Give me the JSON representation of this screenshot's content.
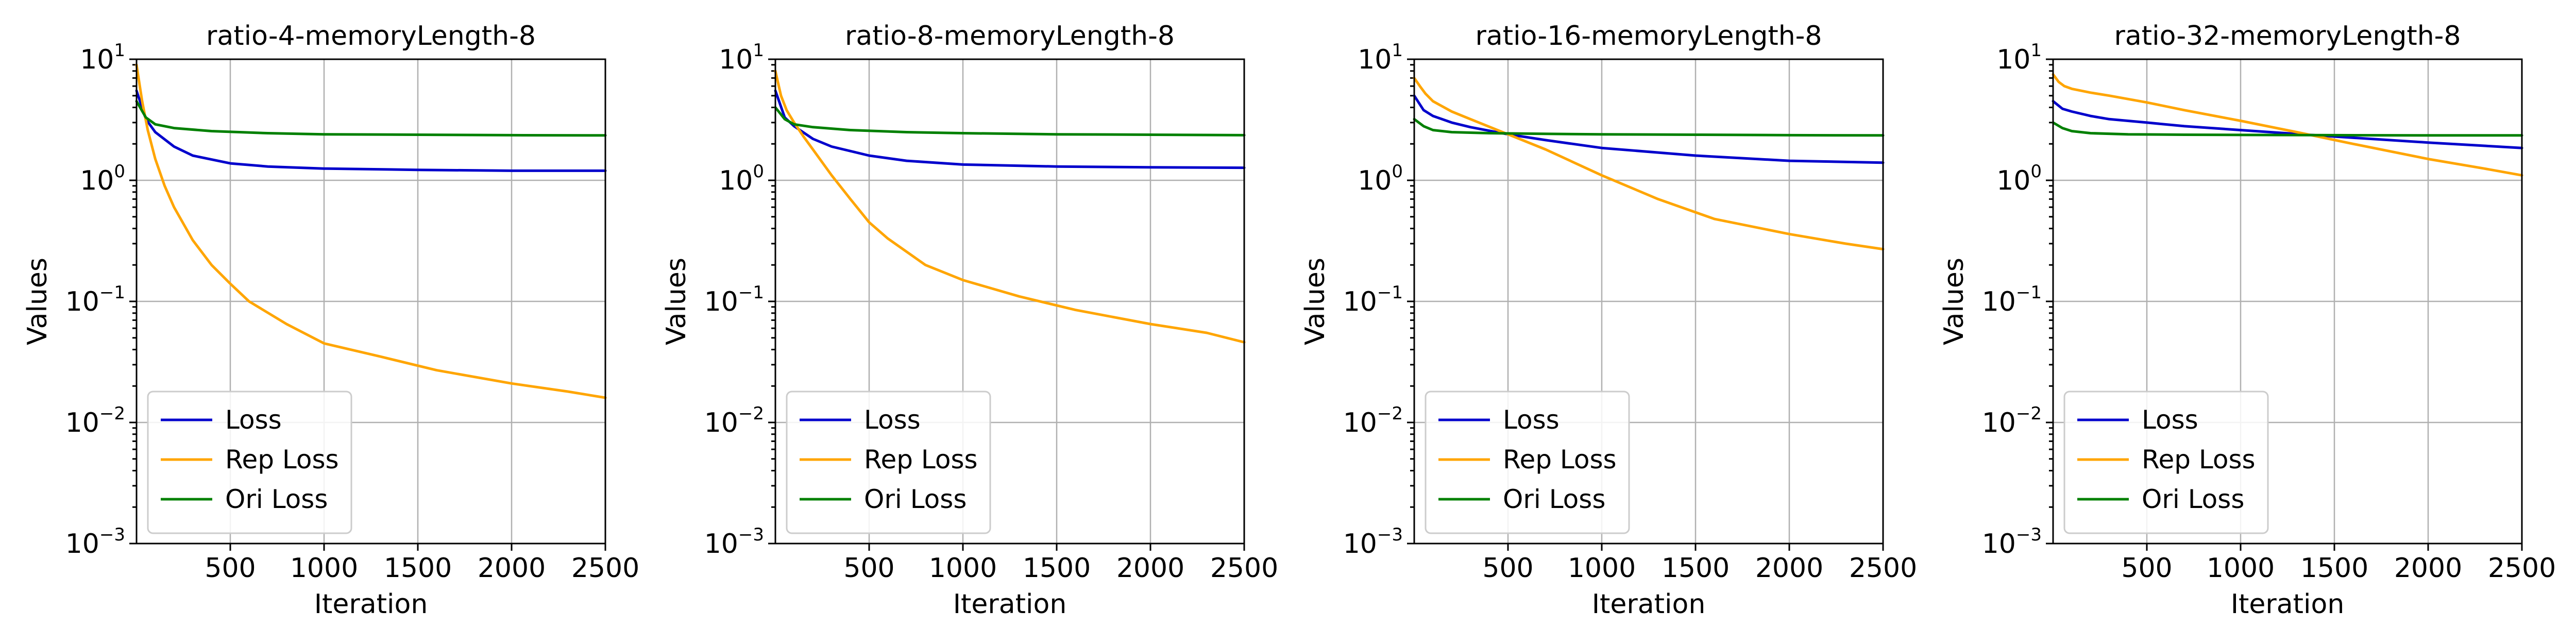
{
  "chart_data": [
    {
      "type": "line",
      "title": "ratio-4-memoryLength-8",
      "xlabel": "Iteration",
      "ylabel": "Values",
      "xlim": [
        0,
        2500
      ],
      "ylim": [
        0.001,
        10
      ],
      "yscale": "log",
      "grid": true,
      "legend_position": "lower-left",
      "x_ticks": [
        "500",
        "1000",
        "1500",
        "2000",
        "2500"
      ],
      "y_ticks": [
        {
          "base": "10",
          "exp": "1"
        },
        {
          "base": "10",
          "exp": "0"
        },
        {
          "base": "10",
          "exp": "−1"
        },
        {
          "base": "10",
          "exp": "−2"
        },
        {
          "base": "10",
          "exp": "−3"
        }
      ],
      "series": [
        {
          "name": "Loss",
          "color": "#0000cc",
          "x": [
            0,
            50,
            100,
            200,
            300,
            500,
            700,
            1000,
            1500,
            2000,
            2500
          ],
          "y": [
            5.5,
            3.2,
            2.5,
            1.9,
            1.6,
            1.38,
            1.3,
            1.25,
            1.22,
            1.2,
            1.2
          ]
        },
        {
          "name": "Rep Loss",
          "color": "#ffa500",
          "x": [
            0,
            30,
            60,
            100,
            150,
            200,
            300,
            400,
            500,
            600,
            800,
            1000,
            1300,
            1600,
            2000,
            2300,
            2500
          ],
          "y": [
            9.0,
            4.5,
            2.6,
            1.5,
            0.9,
            0.6,
            0.32,
            0.2,
            0.14,
            0.1,
            0.065,
            0.045,
            0.035,
            0.027,
            0.021,
            0.018,
            0.016
          ]
        },
        {
          "name": "Ori Loss",
          "color": "#008000",
          "x": [
            0,
            50,
            100,
            200,
            400,
            700,
            1000,
            1500,
            2000,
            2500
          ],
          "y": [
            4.5,
            3.3,
            2.9,
            2.7,
            2.55,
            2.45,
            2.4,
            2.38,
            2.36,
            2.35
          ]
        }
      ]
    },
    {
      "type": "line",
      "title": "ratio-8-memoryLength-8",
      "xlabel": "Iteration",
      "ylabel": "Values",
      "xlim": [
        0,
        2500
      ],
      "ylim": [
        0.001,
        10
      ],
      "yscale": "log",
      "grid": true,
      "legend_position": "lower-left",
      "x_ticks": [
        "500",
        "1000",
        "1500",
        "2000",
        "2500"
      ],
      "y_ticks": [
        {
          "base": "10",
          "exp": "1"
        },
        {
          "base": "10",
          "exp": "0"
        },
        {
          "base": "10",
          "exp": "−1"
        },
        {
          "base": "10",
          "exp": "−2"
        },
        {
          "base": "10",
          "exp": "−3"
        }
      ],
      "series": [
        {
          "name": "Loss",
          "color": "#0000cc",
          "x": [
            0,
            50,
            100,
            200,
            300,
            500,
            700,
            1000,
            1500,
            2000,
            2500
          ],
          "y": [
            5.5,
            3.3,
            2.8,
            2.2,
            1.9,
            1.6,
            1.45,
            1.35,
            1.3,
            1.28,
            1.27
          ]
        },
        {
          "name": "Rep Loss",
          "color": "#ffa500",
          "x": [
            0,
            30,
            60,
            100,
            150,
            200,
            300,
            400,
            500,
            600,
            800,
            1000,
            1300,
            1600,
            2000,
            2300,
            2500
          ],
          "y": [
            8.0,
            5.0,
            3.8,
            3.0,
            2.3,
            1.8,
            1.1,
            0.7,
            0.45,
            0.33,
            0.2,
            0.15,
            0.11,
            0.085,
            0.065,
            0.055,
            0.046
          ]
        },
        {
          "name": "Ori Loss",
          "color": "#008000",
          "x": [
            0,
            50,
            100,
            200,
            400,
            700,
            1000,
            1500,
            2000,
            2500
          ],
          "y": [
            4.0,
            3.2,
            2.9,
            2.75,
            2.6,
            2.5,
            2.45,
            2.4,
            2.38,
            2.36
          ]
        }
      ]
    },
    {
      "type": "line",
      "title": "ratio-16-memoryLength-8",
      "xlabel": "Iteration",
      "ylabel": "Values",
      "xlim": [
        0,
        2500
      ],
      "ylim": [
        0.001,
        10
      ],
      "yscale": "log",
      "grid": true,
      "legend_position": "lower-left",
      "x_ticks": [
        "500",
        "1000",
        "1500",
        "2000",
        "2500"
      ],
      "y_ticks": [
        {
          "base": "10",
          "exp": "1"
        },
        {
          "base": "10",
          "exp": "0"
        },
        {
          "base": "10",
          "exp": "−1"
        },
        {
          "base": "10",
          "exp": "−2"
        },
        {
          "base": "10",
          "exp": "−3"
        }
      ],
      "series": [
        {
          "name": "Loss",
          "color": "#0000cc",
          "x": [
            0,
            50,
            100,
            200,
            300,
            500,
            700,
            1000,
            1500,
            2000,
            2500
          ],
          "y": [
            5.0,
            3.8,
            3.4,
            3.0,
            2.75,
            2.4,
            2.15,
            1.85,
            1.6,
            1.45,
            1.4
          ]
        },
        {
          "name": "Rep Loss",
          "color": "#ffa500",
          "x": [
            0,
            30,
            60,
            100,
            200,
            300,
            500,
            700,
            1000,
            1300,
            1600,
            2000,
            2300,
            2500
          ],
          "y": [
            7.0,
            6.0,
            5.2,
            4.5,
            3.7,
            3.2,
            2.4,
            1.8,
            1.1,
            0.7,
            0.48,
            0.36,
            0.3,
            0.27
          ]
        },
        {
          "name": "Ori Loss",
          "color": "#008000",
          "x": [
            0,
            50,
            100,
            200,
            400,
            700,
            1000,
            1500,
            2000,
            2500
          ],
          "y": [
            3.2,
            2.8,
            2.6,
            2.5,
            2.45,
            2.42,
            2.4,
            2.38,
            2.36,
            2.35
          ]
        }
      ]
    },
    {
      "type": "line",
      "title": "ratio-32-memoryLength-8",
      "xlabel": "Iteration",
      "ylabel": "Values",
      "xlim": [
        0,
        2500
      ],
      "ylim": [
        0.001,
        10
      ],
      "yscale": "log",
      "grid": true,
      "legend_position": "lower-left",
      "x_ticks": [
        "500",
        "1000",
        "1500",
        "2000",
        "2500"
      ],
      "y_ticks": [
        {
          "base": "10",
          "exp": "1"
        },
        {
          "base": "10",
          "exp": "0"
        },
        {
          "base": "10",
          "exp": "−1"
        },
        {
          "base": "10",
          "exp": "−2"
        },
        {
          "base": "10",
          "exp": "−3"
        }
      ],
      "series": [
        {
          "name": "Loss",
          "color": "#0000cc",
          "x": [
            0,
            50,
            100,
            200,
            300,
            500,
            700,
            1000,
            1500,
            2000,
            2500
          ],
          "y": [
            4.5,
            3.9,
            3.7,
            3.4,
            3.2,
            3.0,
            2.8,
            2.6,
            2.3,
            2.05,
            1.85
          ]
        },
        {
          "name": "Rep Loss",
          "color": "#ffa500",
          "x": [
            0,
            30,
            60,
            100,
            200,
            300,
            500,
            700,
            1000,
            1300,
            1600,
            2000,
            2300,
            2500
          ],
          "y": [
            7.5,
            6.5,
            6.0,
            5.7,
            5.3,
            5.0,
            4.4,
            3.8,
            3.1,
            2.5,
            2.0,
            1.5,
            1.25,
            1.1
          ]
        },
        {
          "name": "Ori Loss",
          "color": "#008000",
          "x": [
            0,
            50,
            100,
            200,
            400,
            700,
            1000,
            1500,
            2000,
            2500
          ],
          "y": [
            3.0,
            2.7,
            2.55,
            2.45,
            2.4,
            2.38,
            2.37,
            2.36,
            2.35,
            2.35
          ]
        }
      ]
    }
  ]
}
